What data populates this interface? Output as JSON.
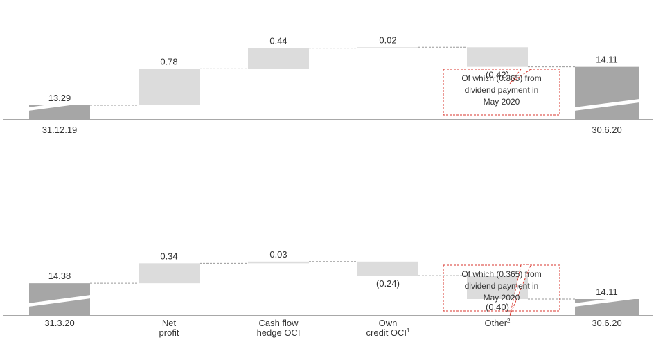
{
  "colors": {
    "total": "#a6a6a6",
    "change": "#dcdcdc",
    "axis": "#8c8c8c",
    "connector": "#9a9a9a",
    "callout_border": "#d9362c",
    "text": "#333333"
  },
  "chart_data": [
    {
      "type": "bar",
      "subtype": "waterfall",
      "categories": [
        "31.12.19",
        "",
        "",
        "",
        "",
        "30.6.20"
      ],
      "steps": [
        {
          "kind": "total",
          "value": 13.29,
          "label": "13.29"
        },
        {
          "kind": "change",
          "value": 0.78,
          "label": "0.78"
        },
        {
          "kind": "change",
          "value": 0.44,
          "label": "0.44"
        },
        {
          "kind": "change",
          "value": 0.02,
          "label": "0.02"
        },
        {
          "kind": "change",
          "value": -0.42,
          "label": "(0.42)"
        },
        {
          "kind": "total",
          "value": 14.11,
          "label": "14.11"
        }
      ],
      "axis_break": true,
      "annotation": {
        "category_index": 4,
        "lines": [
          "Of which (0.365) from",
          "dividend payment in",
          "May 2020"
        ]
      }
    },
    {
      "type": "bar",
      "subtype": "waterfall",
      "categories": [
        "31.3.20",
        "Net profit",
        "Cash flow hedge OCI",
        "Own credit OCI1",
        "Other2",
        "30.6.20"
      ],
      "category_lines": [
        [
          "31.3.20"
        ],
        [
          "Net",
          "profit"
        ],
        [
          "Cash flow",
          "hedge OCI"
        ],
        [
          "Own",
          "credit OCI",
          "1"
        ],
        [
          "Other",
          "2"
        ],
        [
          "30.6.20"
        ]
      ],
      "steps": [
        {
          "kind": "total",
          "value": 14.38,
          "label": "14.38"
        },
        {
          "kind": "change",
          "value": 0.34,
          "label": "0.34"
        },
        {
          "kind": "change",
          "value": 0.03,
          "label": "0.03"
        },
        {
          "kind": "change",
          "value": -0.24,
          "label": "(0.24)"
        },
        {
          "kind": "change",
          "value": -0.4,
          "label": "(0.40)"
        },
        {
          "kind": "total",
          "value": 14.11,
          "label": "14.11"
        }
      ],
      "axis_break": true,
      "annotation": {
        "category_index": 4,
        "lines": [
          "Of which (0.365) from",
          "dividend payment in",
          "May 2020"
        ]
      }
    }
  ]
}
